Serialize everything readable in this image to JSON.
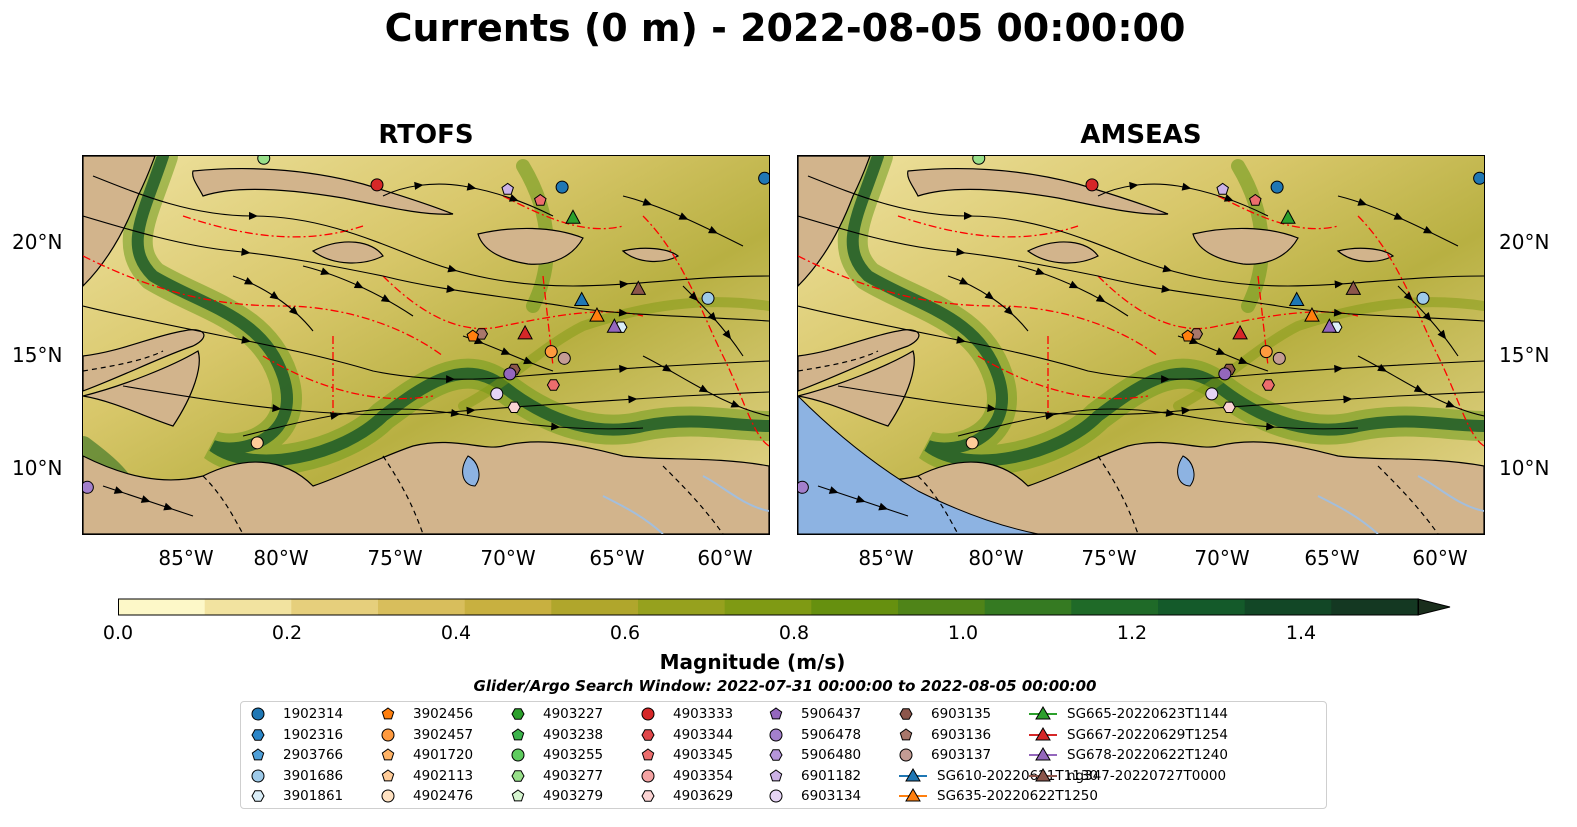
{
  "title": "Currents (0 m) - 2022-08-05 00:00:00",
  "panels": [
    {
      "title": "RTOFS"
    },
    {
      "title": "AMSEAS"
    }
  ],
  "latitudes": [
    "20°N",
    "15°N",
    "10°N"
  ],
  "longitudes": [
    "85°W",
    "80°W",
    "75°W",
    "70°W",
    "65°W",
    "60°W"
  ],
  "map_extent": {
    "lon_min": -89.5,
    "lon_max": -58.0,
    "lat_min": 7.0,
    "lat_max": 24.0
  },
  "colorbar": {
    "label": "Magnitude (m/s)",
    "ticks": [
      "0.0",
      "0.2",
      "0.4",
      "0.6",
      "0.8",
      "1.0",
      "1.2",
      "1.4"
    ],
    "range": [
      0.0,
      1.5
    ],
    "extend": "max",
    "colors": [
      "#fdf8c8",
      "#f2e3a0",
      "#e6cf7c",
      "#d8be5c",
      "#c8b040",
      "#b0a62c",
      "#96a11e",
      "#7f9a14",
      "#66900f",
      "#4f8418",
      "#357a22",
      "#1f6a28",
      "#145a2a",
      "#124726",
      "#143822",
      "#1a2e1c"
    ]
  },
  "colors": {
    "land": "#d2b48c",
    "lakes": "#8db3e2",
    "rivers": "#a3bedc",
    "eez": "#ff0000",
    "border": "#000000"
  },
  "search_window": "Glider/Argo Search Window: 2022-07-31 00:00:00 to 2022-08-05 00:00:00",
  "legend": [
    {
      "label": "1902314",
      "marker": "circle",
      "color": "#1f77b4"
    },
    {
      "label": "1902316",
      "marker": "hexagon",
      "color": "#2b86c8"
    },
    {
      "label": "2903766",
      "marker": "pentagon",
      "color": "#4e9fd8"
    },
    {
      "label": "3901686",
      "marker": "circle",
      "color": "#9ecae9"
    },
    {
      "label": "3901861",
      "marker": "hexagon",
      "color": "#dbeef8"
    },
    {
      "label": "3902456",
      "marker": "pentagon",
      "color": "#ff7f0e"
    },
    {
      "label": "3902457",
      "marker": "circle",
      "color": "#ff9a3e"
    },
    {
      "label": "4901720",
      "marker": "pentagon",
      "color": "#ffb366"
    },
    {
      "label": "4902113",
      "marker": "pentagon",
      "color": "#ffcc99"
    },
    {
      "label": "4902476",
      "marker": "circle",
      "color": "#ffe2c2"
    },
    {
      "label": "4903227",
      "marker": "hexagon",
      "color": "#2ca02c"
    },
    {
      "label": "4903238",
      "marker": "pentagon",
      "color": "#3cb44b"
    },
    {
      "label": "4903255",
      "marker": "circle",
      "color": "#5ecb5e"
    },
    {
      "label": "4903277",
      "marker": "hexagon",
      "color": "#98df8a"
    },
    {
      "label": "4903279",
      "marker": "pentagon",
      "color": "#d6f5d0"
    },
    {
      "label": "4903333",
      "marker": "circle",
      "color": "#d62728"
    },
    {
      "label": "4903344",
      "marker": "hexagon",
      "color": "#e0474a"
    },
    {
      "label": "4903345",
      "marker": "pentagon",
      "color": "#ec6d6d"
    },
    {
      "label": "4903354",
      "marker": "circle",
      "color": "#f4a3a3"
    },
    {
      "label": "4903629",
      "marker": "hexagon",
      "color": "#fbd3d3"
    },
    {
      "label": "5906437",
      "marker": "pentagon",
      "color": "#9467bd"
    },
    {
      "label": "5906478",
      "marker": "circle",
      "color": "#a37fcc"
    },
    {
      "label": "5906480",
      "marker": "hexagon",
      "color": "#b595d9"
    },
    {
      "label": "6901182",
      "marker": "pentagon",
      "color": "#ccb2e6"
    },
    {
      "label": "6903134",
      "marker": "circle",
      "color": "#e6d4f5"
    },
    {
      "label": "6903135",
      "marker": "hexagon",
      "color": "#8c564b"
    },
    {
      "label": "6903136",
      "marker": "pentagon",
      "color": "#a8776b"
    },
    {
      "label": "6903137",
      "marker": "circle",
      "color": "#c49c94"
    },
    {
      "label": "SG610-20220621T1130",
      "marker": "triangle",
      "color": "#1f77b4"
    },
    {
      "label": "SG635-20220622T1250",
      "marker": "triangle",
      "color": "#ff7f0e"
    },
    {
      "label": "SG665-20220623T1144",
      "marker": "triangle",
      "color": "#2ca02c"
    },
    {
      "label": "SG667-20220629T1254",
      "marker": "triangle",
      "color": "#d62728"
    },
    {
      "label": "SG678-20220622T1240",
      "marker": "triangle",
      "color": "#9467bd"
    },
    {
      "label": "ng347-20220727T0000",
      "marker": "triangle",
      "color": "#8c564b"
    }
  ],
  "floats": [
    {
      "lon": -81.2,
      "lat": 23.9,
      "marker": "circle",
      "color": "#98df8a"
    },
    {
      "lon": -76.0,
      "lat": 22.7,
      "marker": "circle",
      "color": "#d62728"
    },
    {
      "lon": -70.0,
      "lat": 22.5,
      "marker": "pentagon",
      "color": "#ccb2e6"
    },
    {
      "lon": -67.5,
      "lat": 22.6,
      "marker": "circle",
      "color": "#1f77b4"
    },
    {
      "lon": -68.5,
      "lat": 22.0,
      "marker": "pentagon",
      "color": "#ec6d6d"
    },
    {
      "lon": -58.2,
      "lat": 23.0,
      "marker": "circle",
      "color": "#1f77b4"
    },
    {
      "lon": -60.8,
      "lat": 17.6,
      "marker": "circle",
      "color": "#9ecae9"
    },
    {
      "lon": -64.8,
      "lat": 16.3,
      "marker": "hexagon",
      "color": "#dbeef8"
    },
    {
      "lon": -71.2,
      "lat": 16.0,
      "marker": "hexagon",
      "color": "#a8776b"
    },
    {
      "lon": -71.6,
      "lat": 15.9,
      "marker": "pentagon",
      "color": "#ff7f0e"
    },
    {
      "lon": -68.0,
      "lat": 15.2,
      "marker": "circle",
      "color": "#ff9a3e"
    },
    {
      "lon": -67.4,
      "lat": 14.9,
      "marker": "circle",
      "color": "#c49c94"
    },
    {
      "lon": -69.7,
      "lat": 14.4,
      "marker": "hexagon",
      "color": "#8c564b"
    },
    {
      "lon": -69.9,
      "lat": 14.2,
      "marker": "circle",
      "color": "#9467bd"
    },
    {
      "lon": -67.9,
      "lat": 13.7,
      "marker": "hexagon",
      "color": "#ec6d6d"
    },
    {
      "lon": -70.5,
      "lat": 13.3,
      "marker": "circle",
      "color": "#e6d4f5"
    },
    {
      "lon": -69.7,
      "lat": 12.7,
      "marker": "hexagon",
      "color": "#fbd3d3"
    },
    {
      "lon": -81.5,
      "lat": 11.1,
      "marker": "circle",
      "color": "#ffcc99"
    },
    {
      "lon": -89.3,
      "lat": 9.1,
      "marker": "circle",
      "color": "#a37fcc"
    }
  ],
  "gliders": [
    {
      "lon": -66.6,
      "lat": 17.5,
      "color": "#1f77b4"
    },
    {
      "lon": -65.9,
      "lat": 16.8,
      "color": "#ff7f0e"
    },
    {
      "lon": -67.0,
      "lat": 21.2,
      "color": "#2ca02c"
    },
    {
      "lon": -69.2,
      "lat": 16.0,
      "color": "#d62728"
    },
    {
      "lon": -65.1,
      "lat": 16.3,
      "color": "#9467bd"
    },
    {
      "lon": -64.0,
      "lat": 18.0,
      "color": "#8c564b"
    }
  ]
}
